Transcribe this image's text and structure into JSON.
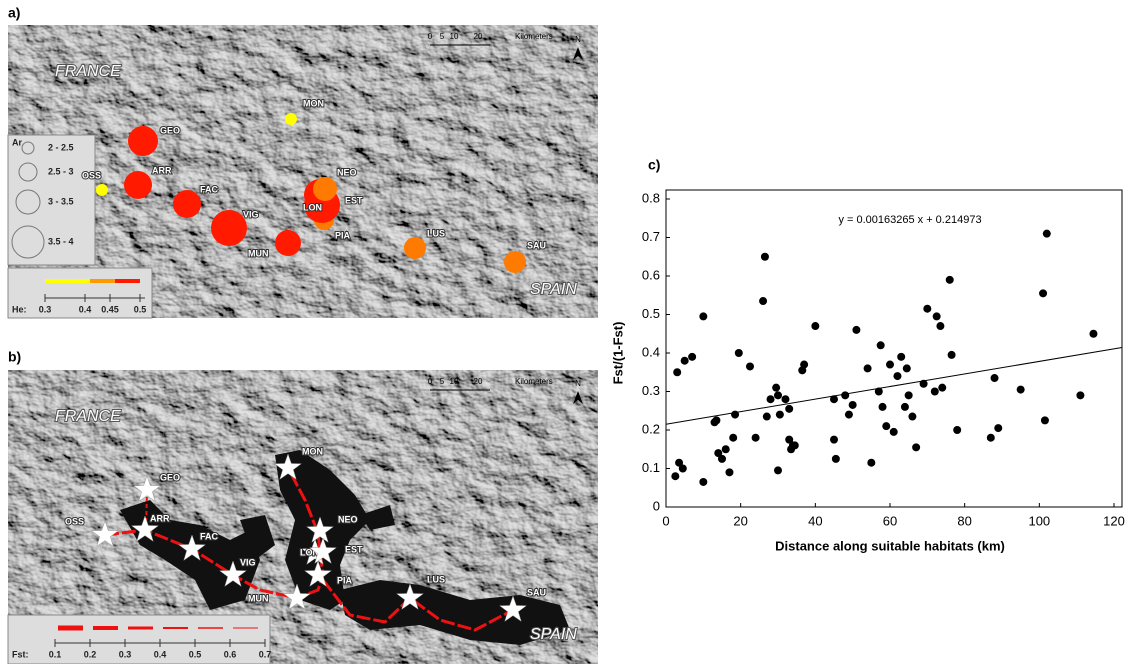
{
  "map_a": {
    "label": "a)",
    "country_north": "FRANCE",
    "country_south": "SPAIN",
    "scale": [
      "0",
      "5",
      "10",
      "20",
      "Kilometers"
    ],
    "north": "N",
    "sites": [
      {
        "name": "GEO",
        "color": "#ff1a00"
      },
      {
        "name": "MON",
        "color": "#ffff00"
      },
      {
        "name": "OSS",
        "color": "#ffff00"
      },
      {
        "name": "ARR",
        "color": "#ff1a00"
      },
      {
        "name": "FAC",
        "color": "#ff1a00"
      },
      {
        "name": "VIG",
        "color": "#ff1a00"
      },
      {
        "name": "MUN",
        "color": "#ff1a00"
      },
      {
        "name": "LON",
        "color": "#ff1a00"
      },
      {
        "name": "NEO",
        "color": "#ff7a00"
      },
      {
        "name": "EST",
        "color": "#ff1a00"
      },
      {
        "name": "PIA",
        "color": "#ff7a00"
      },
      {
        "name": "LUS",
        "color": "#ff7a00"
      },
      {
        "name": "SAU",
        "color": "#ff7a00"
      }
    ],
    "ar_legend": {
      "title": "Ar",
      "items": [
        "2 - 2.5",
        "2.5 - 3",
        "3 - 3.5",
        "3.5 - 4"
      ]
    },
    "he_legend": {
      "title": "He:",
      "ticks": [
        "0.3",
        "0.4",
        "0.45",
        "0.5"
      ]
    }
  },
  "map_b": {
    "label": "b)",
    "country_north": "FRANCE",
    "country_south": "SPAIN",
    "scale": [
      "0",
      "5",
      "10",
      "20",
      "Kilometers"
    ],
    "north": "N",
    "sites": [
      "OSS",
      "GEO",
      "ARR",
      "FAC",
      "VIG",
      "MUN",
      "LON",
      "NEO",
      "EST",
      "PIA",
      "MON",
      "LUS",
      "SAU"
    ],
    "fst_legend": {
      "title": "Fst:",
      "ticks": [
        "0.1",
        "0.2",
        "0.3",
        "0.4",
        "0.5",
        "0.6",
        "0.7"
      ]
    }
  },
  "chart_data": {
    "type": "scatter",
    "label": "c)",
    "equation": "y = 0.00163265 x + 0.214973",
    "trendline": {
      "slope": 0.00163265,
      "intercept": 0.214973
    },
    "x_label": "Distance along suitable habitats (km)",
    "y_label": "Fst/(1-Fst)",
    "color": "#000000",
    "x": [
      2.5,
      3,
      3.5,
      4.5,
      5,
      7,
      10,
      10,
      13,
      13.5,
      14,
      15,
      16,
      17,
      18,
      18.5,
      19.5,
      22.5,
      24,
      26,
      26.5,
      27,
      28,
      29.5,
      30,
      30.5,
      30,
      32,
      33,
      33,
      33.5,
      34,
      34.5,
      36.5,
      37,
      40,
      45,
      45.5,
      45,
      48,
      49,
      50,
      51,
      54,
      55,
      57,
      57.5,
      58,
      59,
      60,
      61,
      62,
      63,
      64,
      64.5,
      65,
      66,
      67,
      69,
      70,
      72,
      72.5,
      73.5,
      74,
      76,
      76.5,
      78,
      87,
      88,
      89,
      95,
      101,
      101.5,
      102,
      111,
      114.5
    ],
    "values": [
      0.08,
      0.35,
      0.115,
      0.1,
      0.38,
      0.39,
      0.495,
      0.065,
      0.22,
      0.225,
      0.14,
      0.125,
      0.15,
      0.09,
      0.18,
      0.24,
      0.4,
      0.365,
      0.18,
      0.535,
      0.65,
      0.235,
      0.28,
      0.31,
      0.29,
      0.24,
      0.095,
      0.28,
      0.255,
      0.175,
      0.15,
      0.16,
      0.16,
      0.355,
      0.37,
      0.47,
      0.175,
      0.125,
      0.28,
      0.29,
      0.24,
      0.265,
      0.46,
      0.36,
      0.115,
      0.3,
      0.42,
      0.26,
      0.21,
      0.37,
      0.195,
      0.34,
      0.39,
      0.26,
      0.36,
      0.29,
      0.235,
      0.155,
      0.32,
      0.515,
      0.3,
      0.495,
      0.47,
      0.31,
      0.59,
      0.395,
      0.2,
      0.18,
      0.335,
      0.205,
      0.305,
      0.555,
      0.225,
      0.71,
      0.29,
      0.45
    ],
    "xlim": [
      0,
      120
    ],
    "xticks": [
      0,
      20,
      40,
      60,
      80,
      100,
      120
    ],
    "ylim": [
      0,
      0.8
    ],
    "yticks": [
      0,
      0.1,
      0.2,
      0.3,
      0.4,
      0.5,
      0.6,
      0.7,
      0.8
    ]
  }
}
